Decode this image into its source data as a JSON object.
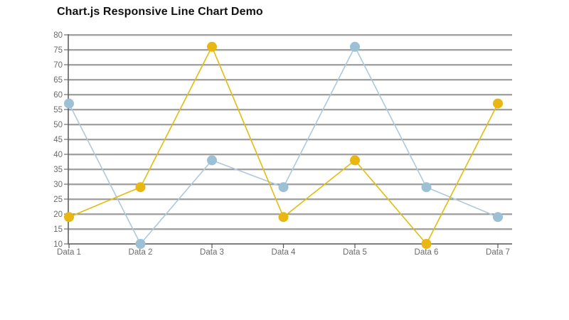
{
  "page": {
    "title": "Chart.js Responsive Line Chart Demo"
  },
  "chart_data": {
    "type": "line",
    "title": "Chart.js Responsive Line Chart Demo",
    "categories": [
      "Data 1",
      "Data 2",
      "Data 3",
      "Data 4",
      "Data 5",
      "Data 6",
      "Data 7"
    ],
    "series": [
      {
        "name": "blue",
        "values": [
          57,
          10,
          38,
          29,
          76,
          29,
          19
        ],
        "line_color": "#aec9da",
        "point_color": "#9cc0d6"
      },
      {
        "name": "yellow",
        "values": [
          19,
          29,
          76,
          19,
          38,
          10,
          57
        ],
        "line_color": "#e0bd10",
        "point_color": "#e8b712"
      }
    ],
    "xlabel": "",
    "ylabel": "",
    "ylim": [
      10,
      80
    ],
    "ytick_step": 5,
    "yticks": [
      10,
      15,
      20,
      25,
      30,
      35,
      40,
      45,
      50,
      55,
      60,
      65,
      70,
      75,
      80
    ],
    "grid": true,
    "legend": "none",
    "colors": {
      "grid_line": "#6e6e6e",
      "grid_echo": "#dadada",
      "axis_line": "#565656",
      "tick_label": "#6b6b6b",
      "background": "#ffffff"
    }
  }
}
